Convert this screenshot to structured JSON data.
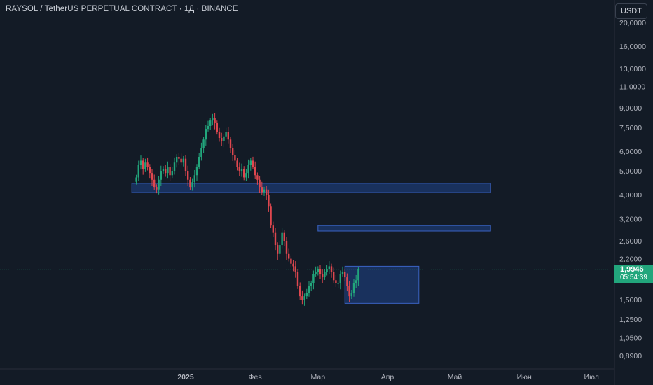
{
  "header": {
    "title": "RAYSOL / TetherUS PERPETUAL CONTRACT · 1Д · BINANCE",
    "currency_button": "USDT"
  },
  "price_badge": {
    "price": "1,9946",
    "countdown": "05:54:39"
  },
  "colors": {
    "background": "#131b26",
    "up": "#22a67c",
    "down": "#e0474f",
    "zone_fill": "#1c3a70",
    "zone_stroke": "#3b63c4"
  },
  "chart_data": {
    "type": "candlestick",
    "symbol": "RAYSOL / TetherUS PERPETUAL CONTRACT",
    "interval": "1Д",
    "exchange": "BINANCE",
    "y_scale": "log",
    "y_ticks": [
      {
        "label": "20,0000",
        "value": 20.0
      },
      {
        "label": "16,0000",
        "value": 16.0
      },
      {
        "label": "13,0000",
        "value": 13.0
      },
      {
        "label": "11,0000",
        "value": 11.0
      },
      {
        "label": "9,0000",
        "value": 9.0
      },
      {
        "label": "7,5000",
        "value": 7.5
      },
      {
        "label": "6,0000",
        "value": 6.0
      },
      {
        "label": "5,0000",
        "value": 5.0
      },
      {
        "label": "4,0000",
        "value": 4.0
      },
      {
        "label": "3,2000",
        "value": 3.2
      },
      {
        "label": "2,6000",
        "value": 2.6
      },
      {
        "label": "2,2000",
        "value": 2.2
      },
      {
        "label": "1,5000",
        "value": 1.5
      },
      {
        "label": "1,2500",
        "value": 1.25
      },
      {
        "label": "1,0500",
        "value": 1.05
      },
      {
        "label": "0,8900",
        "value": 0.89
      }
    ],
    "x_ticks": [
      {
        "label": "2025",
        "date": "2025-01-01"
      },
      {
        "label": "Фев",
        "date": "2025-02-01"
      },
      {
        "label": "Мар",
        "date": "2025-03-01"
      },
      {
        "label": "Апр",
        "date": "2025-04-01"
      },
      {
        "label": "Май",
        "date": "2025-05-01"
      },
      {
        "label": "Июн",
        "date": "2025-06-01"
      },
      {
        "label": "Июл",
        "date": "2025-07-01"
      }
    ],
    "last_price": 1.9946,
    "zones": [
      {
        "from": "2024-12-08",
        "to": "2025-05-17",
        "low": 4.08,
        "high": 4.45
      },
      {
        "from": "2025-03-01",
        "to": "2025-05-17",
        "low": 2.85,
        "high": 3.0
      },
      {
        "from": "2025-03-13",
        "to": "2025-04-15",
        "low": 1.45,
        "high": 2.05
      }
    ],
    "closes": [
      4.7,
      5.3,
      5.5,
      5.1,
      5.4,
      5.2,
      4.9,
      4.6,
      4.3,
      4.2,
      4.6,
      5.0,
      5.1,
      4.9,
      5.2,
      4.8,
      5.0,
      5.4,
      5.7,
      5.6,
      5.4,
      5.6,
      5.0,
      4.6,
      4.3,
      4.5,
      4.8,
      5.2,
      5.7,
      6.2,
      6.7,
      7.4,
      7.6,
      8.0,
      8.2,
      7.8,
      7.2,
      6.8,
      6.6,
      6.9,
      7.2,
      6.7,
      6.2,
      5.8,
      5.5,
      5.2,
      5.0,
      5.1,
      4.7,
      4.9,
      5.3,
      5.5,
      5.2,
      4.8,
      4.6,
      4.3,
      4.1,
      4.2,
      4.0,
      3.6,
      3.0,
      2.8,
      2.5,
      2.3,
      2.5,
      2.8,
      2.6,
      2.3,
      2.2,
      2.1,
      2.05,
      1.95,
      1.7,
      1.55,
      1.5,
      1.55,
      1.6,
      1.7,
      1.75,
      1.9,
      1.95,
      2.0,
      1.9,
      1.85,
      1.95,
      2.0,
      2.05,
      1.95,
      1.8,
      1.75,
      1.75,
      1.9,
      1.95,
      1.85,
      1.7,
      1.55,
      1.6,
      1.75,
      1.8,
      1.99
    ]
  }
}
